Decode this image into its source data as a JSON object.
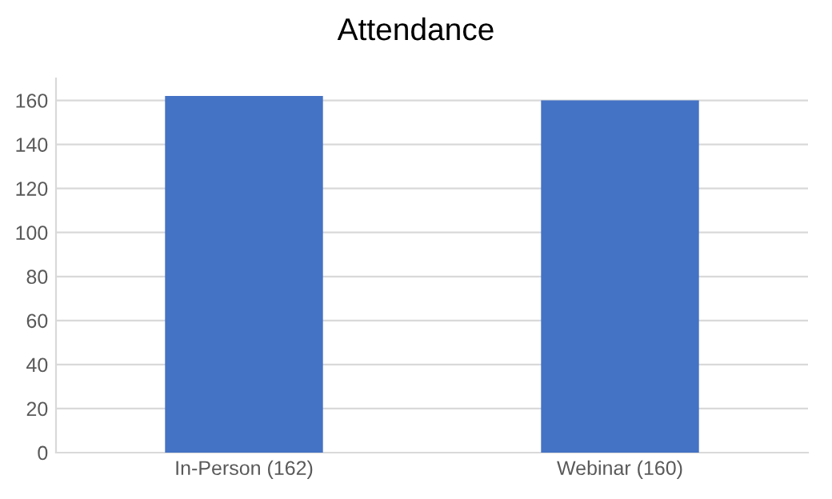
{
  "chart_data": {
    "type": "bar",
    "title": "Attendance",
    "categories": [
      "In-Person (162)",
      "Webinar (160)"
    ],
    "values": [
      162,
      160
    ],
    "color": "#4472c4",
    "ylim": [
      0,
      170
    ],
    "yticks": [
      0,
      20,
      40,
      60,
      80,
      100,
      120,
      140,
      160
    ],
    "grid": "y"
  }
}
